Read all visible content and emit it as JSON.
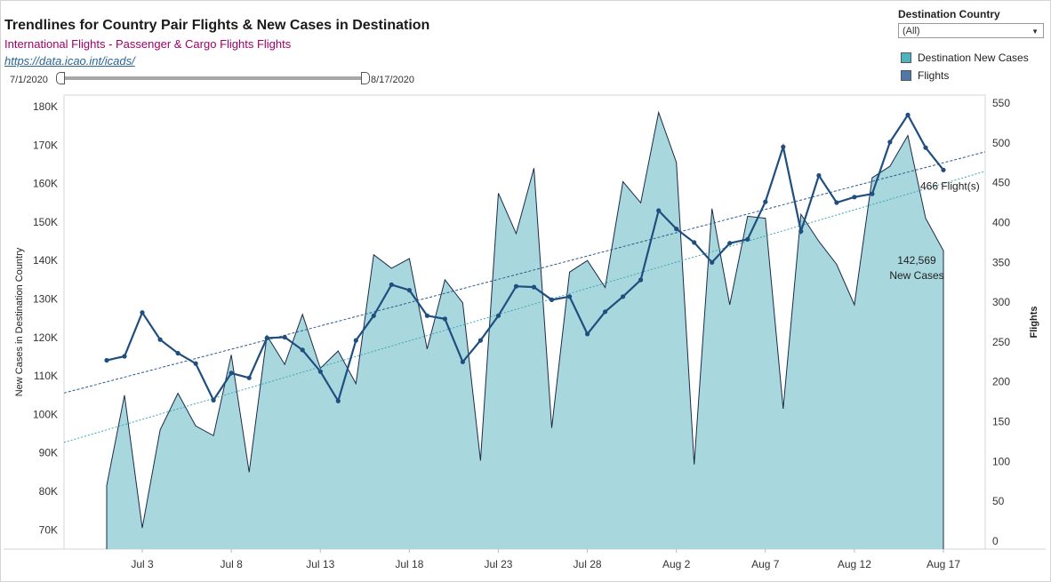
{
  "header": {
    "title": "Trendlines for Country Pair Flights & New Cases in Destination",
    "subtitle": "International Flights - Passenger & Cargo Flights Flights",
    "link": "https://data.icao.int/icads/"
  },
  "slider": {
    "start_label": "7/1/2020",
    "end_label": "8/17/2020"
  },
  "filter": {
    "title": "Destination Country",
    "selected": "(All)"
  },
  "legend": [
    {
      "label": "Destination New Cases",
      "color": "#4fb3bf"
    },
    {
      "label": "Flights",
      "color": "#4e79a7"
    }
  ],
  "colors": {
    "area_fill": "#a8d8de",
    "area_stroke": "#1a2a4a",
    "flights_line": "#1f4e7f",
    "cases_trend": "#3aa6b9",
    "flights_trend": "#2b5a8a"
  },
  "chart_data": {
    "type": "area+line",
    "x": [
      "7/1",
      "7/2",
      "7/3",
      "7/4",
      "7/5",
      "7/6",
      "7/7",
      "7/8",
      "7/9",
      "7/10",
      "7/11",
      "7/12",
      "7/13",
      "7/14",
      "7/15",
      "7/16",
      "7/17",
      "7/18",
      "7/19",
      "7/20",
      "7/21",
      "7/22",
      "7/23",
      "7/24",
      "7/25",
      "7/26",
      "7/27",
      "7/28",
      "7/29",
      "7/30",
      "7/31",
      "8/1",
      "8/2",
      "8/3",
      "8/4",
      "8/5",
      "8/6",
      "8/7",
      "8/8",
      "8/9",
      "8/10",
      "8/11",
      "8/12",
      "8/13",
      "8/14",
      "8/15",
      "8/16",
      "8/17"
    ],
    "x_tick_labels": [
      "Jul 3",
      "Jul 8",
      "Jul 13",
      "Jul 18",
      "Jul 23",
      "Jul 28",
      "Aug 2",
      "Aug 7",
      "Aug 12",
      "Aug 17"
    ],
    "x_tick_index": [
      2,
      7,
      12,
      17,
      22,
      27,
      32,
      37,
      42,
      47
    ],
    "y_left_label": "New Cases in Destination Country",
    "y_left_ticks": [
      "70K",
      "80K",
      "90K",
      "100K",
      "110K",
      "120K",
      "130K",
      "140K",
      "150K",
      "160K",
      "170K",
      "180K"
    ],
    "y_left_range": [
      65000,
      183000
    ],
    "y_right_label": "Flights",
    "y_right_ticks": [
      0,
      50,
      100,
      150,
      200,
      250,
      300,
      350,
      400,
      450,
      500,
      550
    ],
    "y_right_range": [
      -10,
      560
    ],
    "series": [
      {
        "name": "Destination New Cases",
        "axis": "left",
        "type": "area",
        "values": [
          81500,
          105000,
          70500,
          96000,
          105500,
          97000,
          94500,
          115500,
          85000,
          120500,
          113000,
          126000,
          112000,
          116500,
          108000,
          141500,
          138000,
          140500,
          117000,
          135000,
          129000,
          88000,
          157500,
          147000,
          164000,
          96500,
          137000,
          140000,
          133000,
          160500,
          155000,
          178500,
          165500,
          87000,
          153500,
          128500,
          151500,
          151000,
          101500,
          152000,
          145000,
          139000,
          128500,
          161500,
          164500,
          172500,
          151000,
          142569
        ]
      },
      {
        "name": "Flights",
        "axis": "right",
        "type": "line",
        "values": [
          227,
          232,
          287,
          253,
          236,
          223,
          177,
          211,
          205,
          255,
          256,
          240,
          213,
          176,
          252,
          283,
          322,
          315,
          283,
          279,
          225,
          252,
          283,
          320,
          319,
          303,
          307,
          260,
          288,
          307,
          328,
          415,
          392,
          375,
          350,
          374,
          379,
          426,
          495,
          389,
          459,
          425,
          432,
          436,
          501,
          535,
          494,
          466
        ]
      }
    ],
    "trendlines": [
      {
        "series": "Destination New Cases",
        "from": 96000,
        "to": 160000
      },
      {
        "series": "Flights",
        "from": 200,
        "to": 475
      }
    ],
    "annotations": [
      {
        "series": "Flights",
        "index": 47,
        "text": "466 Flight(s)"
      },
      {
        "series": "Destination New Cases",
        "index": 47,
        "lines": [
          "142,569",
          "New Cases"
        ]
      }
    ]
  }
}
